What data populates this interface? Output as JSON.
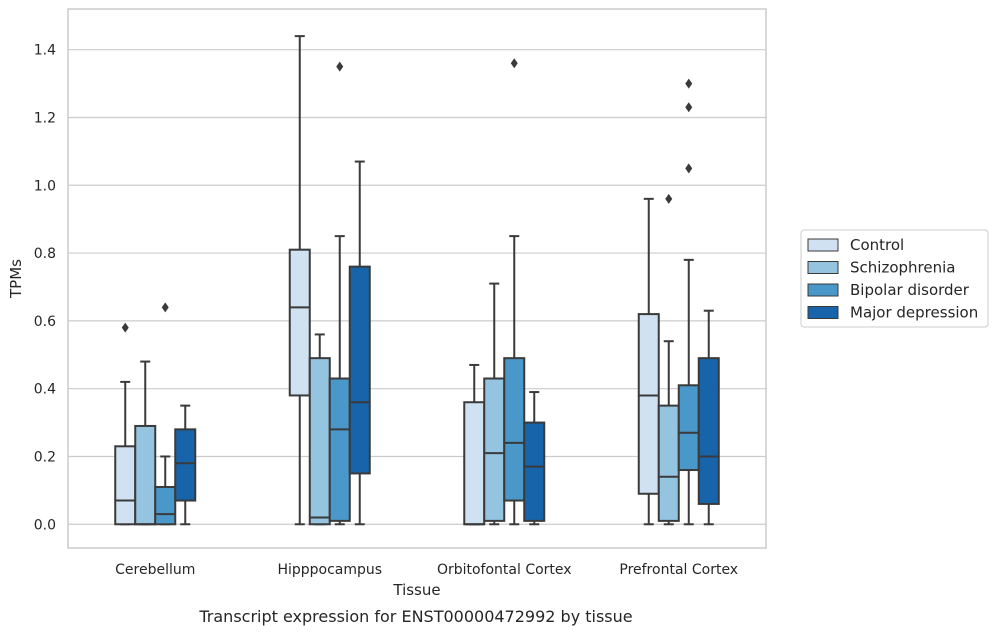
{
  "chart_data": {
    "type": "box",
    "caption": "Transcript expression for ENST00000472992 by tissue",
    "xlabel": "Tissue",
    "ylabel": "TPMs",
    "ylim": [
      -0.07,
      1.52
    ],
    "yticks": [
      0.0,
      0.2,
      0.4,
      0.6,
      0.8,
      1.0,
      1.2,
      1.4
    ],
    "categories": [
      "Cerebellum",
      "Hipppocampus",
      "Orbitofontal Cortex",
      "Prefrontal Cortex"
    ],
    "grid": "horizontal",
    "legend_position": "right",
    "series": [
      {
        "name": "Control",
        "color": "#d0e1f2",
        "boxes": [
          {
            "whisker_low": 0.0,
            "q1": 0.0,
            "median": 0.07,
            "q3": 0.23,
            "whisker_high": 0.42,
            "outliers": [
              0.58
            ]
          },
          {
            "whisker_low": 0.0,
            "q1": 0.38,
            "median": 0.64,
            "q3": 0.81,
            "whisker_high": 1.44,
            "outliers": []
          },
          {
            "whisker_low": 0.0,
            "q1": 0.0,
            "median": 0.0,
            "q3": 0.36,
            "whisker_high": 0.47,
            "outliers": []
          },
          {
            "whisker_low": 0.0,
            "q1": 0.09,
            "median": 0.38,
            "q3": 0.62,
            "whisker_high": 0.96,
            "outliers": []
          }
        ]
      },
      {
        "name": "Schizophrenia",
        "color": "#94c4df",
        "boxes": [
          {
            "whisker_low": 0.0,
            "q1": 0.0,
            "median": 0.0,
            "q3": 0.29,
            "whisker_high": 0.48,
            "outliers": []
          },
          {
            "whisker_low": 0.0,
            "q1": 0.0,
            "median": 0.02,
            "q3": 0.49,
            "whisker_high": 0.56,
            "outliers": []
          },
          {
            "whisker_low": 0.0,
            "q1": 0.01,
            "median": 0.21,
            "q3": 0.43,
            "whisker_high": 0.71,
            "outliers": []
          },
          {
            "whisker_low": 0.0,
            "q1": 0.01,
            "median": 0.14,
            "q3": 0.35,
            "whisker_high": 0.54,
            "outliers": [
              0.96
            ]
          }
        ]
      },
      {
        "name": "Bipolar disorder",
        "color": "#4a98c9",
        "boxes": [
          {
            "whisker_low": 0.0,
            "q1": 0.0,
            "median": 0.03,
            "q3": 0.11,
            "whisker_high": 0.2,
            "outliers": [
              0.64
            ]
          },
          {
            "whisker_low": 0.0,
            "q1": 0.01,
            "median": 0.28,
            "q3": 0.43,
            "whisker_high": 0.85,
            "outliers": [
              1.35
            ]
          },
          {
            "whisker_low": 0.0,
            "q1": 0.07,
            "median": 0.24,
            "q3": 0.49,
            "whisker_high": 0.85,
            "outliers": [
              1.36
            ]
          },
          {
            "whisker_low": 0.0,
            "q1": 0.16,
            "median": 0.27,
            "q3": 0.41,
            "whisker_high": 0.78,
            "outliers": [
              1.05,
              1.23,
              1.3
            ]
          }
        ]
      },
      {
        "name": "Major depression",
        "color": "#1764ab",
        "boxes": [
          {
            "whisker_low": 0.0,
            "q1": 0.07,
            "median": 0.18,
            "q3": 0.28,
            "whisker_high": 0.35,
            "outliers": []
          },
          {
            "whisker_low": 0.0,
            "q1": 0.15,
            "median": 0.36,
            "q3": 0.76,
            "whisker_high": 1.07,
            "outliers": []
          },
          {
            "whisker_low": 0.0,
            "q1": 0.01,
            "median": 0.17,
            "q3": 0.3,
            "whisker_high": 0.39,
            "outliers": []
          },
          {
            "whisker_low": 0.0,
            "q1": 0.06,
            "median": 0.2,
            "q3": 0.49,
            "whisker_high": 0.63,
            "outliers": []
          }
        ]
      }
    ]
  }
}
